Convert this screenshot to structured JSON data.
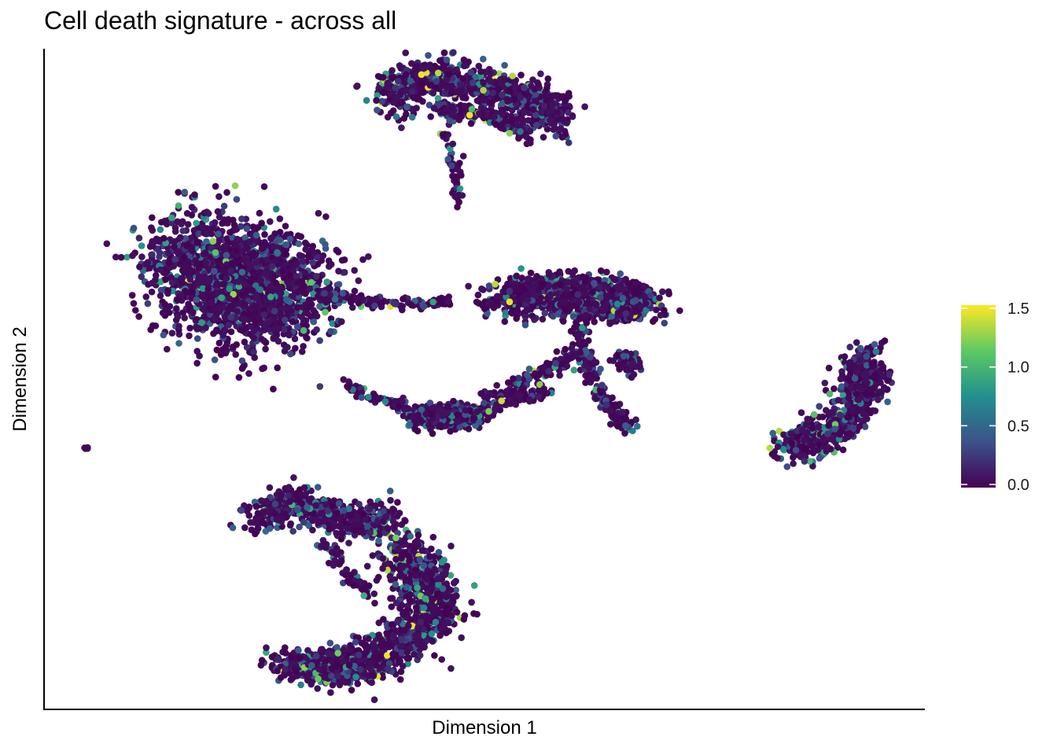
{
  "chart_data": {
    "type": "scatter",
    "title": "Cell death signature - across all",
    "xlabel": "Dimension 1",
    "ylabel": "Dimension 2",
    "x_ticks": "none",
    "y_ticks": "none",
    "xlim": [
      0,
      100
    ],
    "ylim": [
      0,
      100
    ],
    "grid": false,
    "legend": "right",
    "colorbar": {
      "min": 0.0,
      "max": 1.5,
      "ticks": [
        "0.0",
        "0.5",
        "1.0",
        "1.5"
      ],
      "tick_values": [
        0.0,
        0.5,
        1.0,
        1.5
      ],
      "colors": [
        "#440154",
        "#3b528b",
        "#21908c",
        "#5dc963",
        "#fde725"
      ]
    },
    "clusters": [
      {
        "name": "top-arc",
        "n": 900,
        "points": [
          [
            39,
            93
          ],
          [
            42,
            95.5
          ],
          [
            46,
            95.5
          ],
          [
            50,
            94.8
          ],
          [
            54,
            93
          ],
          [
            57,
            91.5
          ],
          [
            58.5,
            89.5
          ]
        ],
        "spread": [
          1.4,
          1.6
        ]
      },
      {
        "name": "top-arc-stem",
        "n": 45,
        "points": [
          [
            45.5,
            88.5
          ],
          [
            46.2,
            85
          ],
          [
            46.8,
            81
          ],
          [
            47,
            76.5
          ]
        ],
        "spread": [
          0.35,
          0.6
        ]
      },
      {
        "name": "top-arc-inner",
        "n": 160,
        "points": [
          [
            45,
            91
          ],
          [
            48,
            90.5
          ],
          [
            51,
            90
          ],
          [
            53.5,
            88.5
          ],
          [
            55,
            86.5
          ]
        ],
        "spread": [
          0.6,
          0.6
        ]
      },
      {
        "name": "left-lobe",
        "n": 1900,
        "points": [
          [
            15,
            68
          ],
          [
            18.5,
            68
          ],
          [
            21,
            64.5
          ],
          [
            23,
            62
          ],
          [
            26,
            63.5
          ],
          [
            29,
            64.5
          ]
        ],
        "spread": [
          3.2,
          4.3
        ]
      },
      {
        "name": "left-lobe-tail",
        "n": 120,
        "points": [
          [
            31,
            63
          ],
          [
            35,
            62.2
          ],
          [
            39,
            61.6
          ],
          [
            43,
            61.4
          ],
          [
            46,
            61.6
          ]
        ],
        "spread": [
          0.5,
          0.5
        ]
      },
      {
        "name": "right-central",
        "n": 1200,
        "points": [
          [
            53,
            62
          ],
          [
            57,
            63.2
          ],
          [
            61,
            62.8
          ],
          [
            64.5,
            62
          ],
          [
            67.5,
            61.5
          ]
        ],
        "spread": [
          1.9,
          1.5
        ]
      },
      {
        "name": "right-central-arm",
        "n": 200,
        "points": [
          [
            61.5,
            60
          ],
          [
            61,
            55.5
          ],
          [
            62,
            51.5
          ],
          [
            63.5,
            47.5
          ],
          [
            65.5,
            44.5
          ],
          [
            66.5,
            42.5
          ]
        ],
        "spread": [
          0.5,
          0.7
        ]
      },
      {
        "name": "right-central-arm-2",
        "n": 120,
        "points": [
          [
            61,
            54
          ],
          [
            58.5,
            52.5
          ],
          [
            56,
            50.5
          ],
          [
            53,
            48.5
          ],
          [
            50,
            47
          ]
        ],
        "spread": [
          0.6,
          0.6
        ]
      },
      {
        "name": "right-central-blob",
        "n": 70,
        "points": [
          [
            65.5,
            53
          ],
          [
            66.5,
            53
          ],
          [
            67,
            51.8
          ]
        ],
        "spread": [
          0.6,
          0.6
        ]
      },
      {
        "name": "middle-bar",
        "n": 450,
        "points": [
          [
            43,
            44
          ],
          [
            45,
            44.5
          ],
          [
            47,
            44.5
          ],
          [
            49,
            44.3
          ]
        ],
        "spread": [
          1.4,
          0.9
        ]
      },
      {
        "name": "middle-bar-tail",
        "n": 60,
        "points": [
          [
            34,
            49.5
          ],
          [
            36.5,
            47.5
          ],
          [
            39,
            46.5
          ],
          [
            41,
            45.8
          ]
        ],
        "spread": [
          0.35,
          0.35
        ]
      },
      {
        "name": "middle-bar-link",
        "n": 80,
        "points": [
          [
            50,
            45.5
          ],
          [
            52.5,
            46.5
          ],
          [
            55,
            47.5
          ],
          [
            57.5,
            48.5
          ]
        ],
        "spread": [
          0.5,
          0.5
        ]
      },
      {
        "name": "far-right-crescent",
        "n": 700,
        "points": [
          [
            84.5,
            39.5
          ],
          [
            88,
            40.5
          ],
          [
            91,
            43.5
          ],
          [
            93,
            47
          ],
          [
            93.5,
            50
          ],
          [
            93.5,
            53.5
          ]
        ],
        "spread": [
          1.2,
          1.3
        ]
      },
      {
        "name": "bottom-hook-upper",
        "n": 600,
        "points": [
          [
            24,
            28.5
          ],
          [
            27,
            31
          ],
          [
            30,
            30.5
          ],
          [
            33,
            28.5
          ],
          [
            36.5,
            28
          ],
          [
            39,
            29
          ]
        ],
        "spread": [
          1.3,
          1.3
        ]
      },
      {
        "name": "bottom-hook-curve",
        "n": 1000,
        "points": [
          [
            40.5,
            25
          ],
          [
            42.5,
            21
          ],
          [
            44,
            17
          ],
          [
            43.5,
            13
          ],
          [
            41,
            9.5
          ],
          [
            37,
            7
          ],
          [
            33,
            6
          ]
        ],
        "spread": [
          1.7,
          1.7
        ]
      },
      {
        "name": "bottom-hook-tail",
        "n": 500,
        "points": [
          [
            28,
            6.5
          ],
          [
            30.5,
            5.8
          ],
          [
            33,
            5.8
          ],
          [
            36,
            6.2
          ]
        ],
        "spread": [
          1.6,
          1.1
        ]
      },
      {
        "name": "bottom-hook-link",
        "n": 60,
        "points": [
          [
            31.5,
            25
          ],
          [
            33.5,
            22
          ],
          [
            35.5,
            19
          ],
          [
            37,
            16.5
          ]
        ],
        "spread": [
          0.5,
          0.5
        ]
      },
      {
        "name": "singleton",
        "n": 5,
        "points": [
          [
            4.7,
            39.4
          ]
        ],
        "spread": [
          0.15,
          0.1
        ]
      }
    ]
  }
}
